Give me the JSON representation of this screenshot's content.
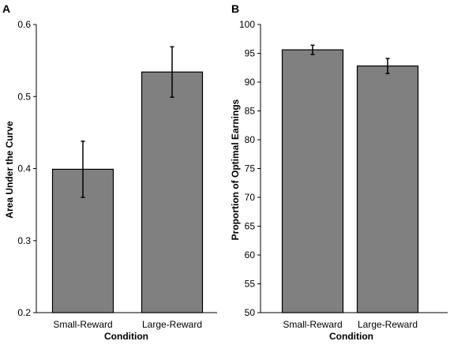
{
  "chart_data": [
    {
      "type": "bar",
      "panel_label": "A",
      "categories": [
        "Small-Reward",
        "Large-Reward"
      ],
      "values": [
        0.399,
        0.534
      ],
      "error_low": [
        0.36,
        0.499
      ],
      "error_high": [
        0.438,
        0.569
      ],
      "xlabel": "Condition",
      "ylabel": "Area Under the Curve",
      "ylim": [
        0.2,
        0.6
      ],
      "yticks": [
        0.2,
        0.3,
        0.4,
        0.5,
        0.6
      ],
      "ytick_labels": [
        "0.2",
        "0.3",
        "0.4",
        "0.5",
        "0.6"
      ],
      "grid": false,
      "bar_color": "#808080"
    },
    {
      "type": "bar",
      "panel_label": "B",
      "categories": [
        "Small-Reward",
        "Large-Reward"
      ],
      "values": [
        95.6,
        92.8
      ],
      "error_low": [
        94.8,
        91.5
      ],
      "error_high": [
        96.4,
        94.1
      ],
      "xlabel": "Condition",
      "ylabel": "Proportion of Optimal Earnings",
      "ylim": [
        50,
        100
      ],
      "yticks": [
        50,
        55,
        60,
        65,
        70,
        75,
        80,
        85,
        90,
        95,
        100
      ],
      "ytick_labels": [
        "50",
        "55",
        "60",
        "65",
        "70",
        "75",
        "80",
        "85",
        "90",
        "95",
        "100"
      ],
      "grid": false,
      "bar_color": "#808080"
    }
  ]
}
